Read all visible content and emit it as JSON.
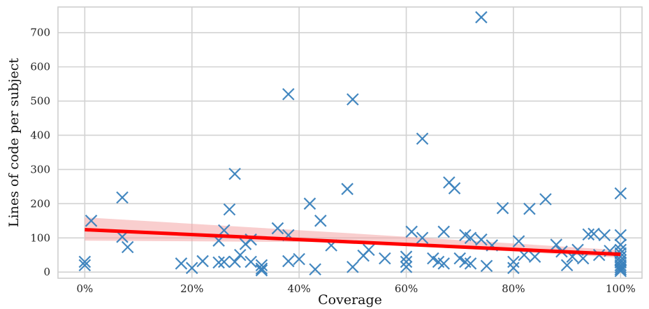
{
  "chart_data": {
    "type": "scatter",
    "xlabel": "Coverage",
    "ylabel": "Lines of code per subject",
    "xlim": [
      -0.05,
      1.04
    ],
    "ylim": [
      -18,
      775
    ],
    "x_ticks": [
      0,
      0.2,
      0.4,
      0.6,
      0.8,
      1.0
    ],
    "x_tick_labels": [
      "0%",
      "20%",
      "40%",
      "60%",
      "80%",
      "100%"
    ],
    "y_ticks": [
      0,
      100,
      200,
      300,
      400,
      500,
      600,
      700
    ],
    "y_tick_labels": [
      "0",
      "100",
      "200",
      "300",
      "400",
      "500",
      "600",
      "700"
    ],
    "grid": true,
    "marker": "x",
    "colors": {
      "points": "#3b82bd",
      "regression": "#ff0000",
      "confidence_band": "#f4a6a6"
    },
    "points": [
      {
        "x": 0.0,
        "y": 30
      },
      {
        "x": 0.0,
        "y": 20
      },
      {
        "x": 0.012,
        "y": 150
      },
      {
        "x": 0.07,
        "y": 218
      },
      {
        "x": 0.07,
        "y": 103
      },
      {
        "x": 0.08,
        "y": 73
      },
      {
        "x": 0.18,
        "y": 25
      },
      {
        "x": 0.2,
        "y": 12
      },
      {
        "x": 0.22,
        "y": 32
      },
      {
        "x": 0.25,
        "y": 28
      },
      {
        "x": 0.25,
        "y": 92
      },
      {
        "x": 0.26,
        "y": 122
      },
      {
        "x": 0.26,
        "y": 30
      },
      {
        "x": 0.27,
        "y": 183
      },
      {
        "x": 0.28,
        "y": 287
      },
      {
        "x": 0.28,
        "y": 30
      },
      {
        "x": 0.29,
        "y": 50
      },
      {
        "x": 0.3,
        "y": 82
      },
      {
        "x": 0.31,
        "y": 30
      },
      {
        "x": 0.31,
        "y": 95
      },
      {
        "x": 0.33,
        "y": 20
      },
      {
        "x": 0.33,
        "y": 10
      },
      {
        "x": 0.33,
        "y": 5
      },
      {
        "x": 0.36,
        "y": 128
      },
      {
        "x": 0.38,
        "y": 520
      },
      {
        "x": 0.38,
        "y": 108
      },
      {
        "x": 0.38,
        "y": 32
      },
      {
        "x": 0.4,
        "y": 38
      },
      {
        "x": 0.42,
        "y": 200
      },
      {
        "x": 0.43,
        "y": 8
      },
      {
        "x": 0.44,
        "y": 150
      },
      {
        "x": 0.46,
        "y": 78
      },
      {
        "x": 0.49,
        "y": 243
      },
      {
        "x": 0.5,
        "y": 505
      },
      {
        "x": 0.5,
        "y": 15
      },
      {
        "x": 0.52,
        "y": 48
      },
      {
        "x": 0.53,
        "y": 65
      },
      {
        "x": 0.56,
        "y": 40
      },
      {
        "x": 0.6,
        "y": 45
      },
      {
        "x": 0.6,
        "y": 30
      },
      {
        "x": 0.6,
        "y": 15
      },
      {
        "x": 0.61,
        "y": 118
      },
      {
        "x": 0.63,
        "y": 390
      },
      {
        "x": 0.63,
        "y": 100
      },
      {
        "x": 0.65,
        "y": 40
      },
      {
        "x": 0.66,
        "y": 30
      },
      {
        "x": 0.67,
        "y": 118
      },
      {
        "x": 0.67,
        "y": 25
      },
      {
        "x": 0.68,
        "y": 262
      },
      {
        "x": 0.69,
        "y": 245
      },
      {
        "x": 0.7,
        "y": 40
      },
      {
        "x": 0.71,
        "y": 108
      },
      {
        "x": 0.71,
        "y": 30
      },
      {
        "x": 0.72,
        "y": 100
      },
      {
        "x": 0.72,
        "y": 25
      },
      {
        "x": 0.74,
        "y": 745
      },
      {
        "x": 0.74,
        "y": 95
      },
      {
        "x": 0.75,
        "y": 18
      },
      {
        "x": 0.76,
        "y": 78
      },
      {
        "x": 0.78,
        "y": 187
      },
      {
        "x": 0.8,
        "y": 30
      },
      {
        "x": 0.8,
        "y": 12
      },
      {
        "x": 0.81,
        "y": 90
      },
      {
        "x": 0.82,
        "y": 50
      },
      {
        "x": 0.83,
        "y": 185
      },
      {
        "x": 0.84,
        "y": 45
      },
      {
        "x": 0.86,
        "y": 213
      },
      {
        "x": 0.88,
        "y": 80
      },
      {
        "x": 0.89,
        "y": 60
      },
      {
        "x": 0.9,
        "y": 20
      },
      {
        "x": 0.91,
        "y": 45
      },
      {
        "x": 0.92,
        "y": 65
      },
      {
        "x": 0.93,
        "y": 40
      },
      {
        "x": 0.94,
        "y": 110
      },
      {
        "x": 0.95,
        "y": 112
      },
      {
        "x": 0.96,
        "y": 50
      },
      {
        "x": 0.97,
        "y": 108
      },
      {
        "x": 0.98,
        "y": 62
      },
      {
        "x": 1.0,
        "y": 230
      },
      {
        "x": 1.0,
        "y": 108
      },
      {
        "x": 1.0,
        "y": 80
      },
      {
        "x": 1.0,
        "y": 65
      },
      {
        "x": 1.0,
        "y": 55
      },
      {
        "x": 1.0,
        "y": 45
      },
      {
        "x": 1.0,
        "y": 35
      },
      {
        "x": 1.0,
        "y": 28
      },
      {
        "x": 1.0,
        "y": 20
      },
      {
        "x": 1.0,
        "y": 14
      },
      {
        "x": 1.0,
        "y": 8
      },
      {
        "x": 1.0,
        "y": 3
      }
    ],
    "regression": {
      "x": [
        0,
        1.0
      ],
      "y": [
        124,
        52
      ]
    },
    "confidence_band": {
      "x": [
        0,
        0.5,
        1.0
      ],
      "lower": [
        92,
        87,
        42
      ],
      "upper": [
        160,
        113,
        64
      ]
    }
  }
}
